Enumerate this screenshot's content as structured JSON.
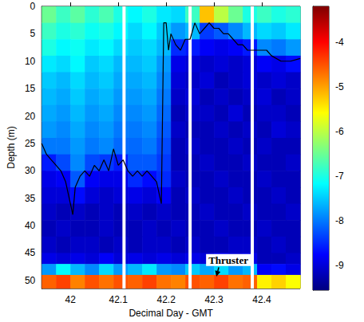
{
  "chart_data": {
    "type": "heatmap",
    "xlabel": "Decimal Day - GMT",
    "ylabel": "Depth (m)",
    "xlim": [
      41.94,
      42.48
    ],
    "xticks": [
      42,
      42.1,
      42.2,
      42.3,
      42.4
    ],
    "ylim": [
      51.5,
      0
    ],
    "yticks": [
      0,
      5,
      10,
      15,
      20,
      25,
      30,
      35,
      40,
      45,
      50
    ],
    "grid": false,
    "x_edges": [
      41.94,
      41.97,
      42.0,
      42.03,
      42.06,
      42.09,
      42.12,
      42.15,
      42.18,
      42.21,
      42.24,
      42.27,
      42.3,
      42.33,
      42.36,
      42.39,
      42.42,
      42.45,
      42.48
    ],
    "depth_edges": [
      0,
      3,
      6,
      9,
      12,
      15,
      18,
      21,
      24,
      27,
      30,
      33,
      36,
      39,
      42,
      45,
      47,
      49,
      51.5
    ],
    "cells": [
      [
        -6.5,
        -6.8,
        -6.6,
        -6.9,
        -6.7,
        -7.0,
        -7.2,
        -7.0,
        -7.3,
        -7.4,
        -6.8,
        -5.2,
        -6.0,
        -6.5,
        -7.0,
        -6.8,
        -7.0,
        -6.9
      ],
      [
        -6.8,
        -7.0,
        -6.9,
        -7.1,
        -7.0,
        -7.2,
        -7.4,
        -7.2,
        -7.5,
        -7.8,
        -7.6,
        -8.4,
        -8.2,
        -7.9,
        -7.6,
        -7.4,
        -7.5,
        -7.3
      ],
      [
        -7.0,
        -7.2,
        -7.1,
        -7.3,
        -7.2,
        -7.4,
        -7.5,
        -7.4,
        -7.6,
        -8.5,
        -8.6,
        -8.8,
        -8.9,
        -8.8,
        -8.6,
        -7.9,
        -8.0,
        -7.8
      ],
      [
        -7.3,
        -7.4,
        -7.2,
        -7.5,
        -7.4,
        -7.6,
        -7.6,
        -7.5,
        -7.8,
        -8.9,
        -9.0,
        -9.1,
        -9.0,
        -9.1,
        -9.0,
        -8.8,
        -8.9,
        -8.7
      ],
      [
        -7.5,
        -7.6,
        -7.4,
        -7.6,
        -7.5,
        -7.7,
        -7.7,
        -7.6,
        -7.9,
        -9.0,
        -9.1,
        -9.0,
        -9.2,
        -9.1,
        -9.0,
        -9.1,
        -9.0,
        -9.1
      ],
      [
        -7.6,
        -7.7,
        -7.5,
        -7.7,
        -7.6,
        -7.8,
        -7.8,
        -7.7,
        -8.0,
        -9.1,
        -9.0,
        -9.2,
        -9.1,
        -9.2,
        -9.1,
        -9.0,
        -9.2,
        -9.1
      ],
      [
        -7.7,
        -7.8,
        -7.6,
        -7.8,
        -7.7,
        -7.9,
        -7.9,
        -7.8,
        -8.1,
        -9.2,
        -9.1,
        -9.1,
        -9.2,
        -9.0,
        -9.2,
        -9.1,
        -9.1,
        -9.2
      ],
      [
        -7.8,
        -7.9,
        -7.7,
        -7.9,
        -7.8,
        -8.0,
        -8.0,
        -7.9,
        -8.2,
        -9.1,
        -9.2,
        -9.2,
        -9.1,
        -9.2,
        -9.1,
        -9.2,
        -9.0,
        -9.1
      ],
      [
        -8.0,
        -8.0,
        -7.8,
        -8.0,
        -7.9,
        -8.1,
        -8.1,
        -8.0,
        -8.3,
        -9.2,
        -9.1,
        -9.2,
        -9.2,
        -9.1,
        -9.2,
        -9.1,
        -9.2,
        -9.2
      ],
      [
        -8.6,
        -8.3,
        -7.9,
        -8.3,
        -8.4,
        -8.6,
        -8.2,
        -8.2,
        -8.4,
        -9.2,
        -9.2,
        -9.1,
        -9.2,
        -9.2,
        -9.1,
        -9.2,
        -9.2,
        -9.1
      ],
      [
        -8.9,
        -8.8,
        -8.2,
        -8.8,
        -8.9,
        -8.9,
        -8.5,
        -8.7,
        -8.5,
        -9.1,
        -9.2,
        -9.2,
        -9.1,
        -9.2,
        -9.2,
        -9.1,
        -9.2,
        -9.2
      ],
      [
        -9.0,
        -9.0,
        -8.7,
        -9.0,
        -9.1,
        -9.0,
        -8.9,
        -9.0,
        -8.8,
        -9.2,
        -9.1,
        -9.2,
        -9.2,
        -9.1,
        -9.2,
        -9.2,
        -9.1,
        -9.2
      ],
      [
        -9.1,
        -9.2,
        -9.1,
        -9.2,
        -9.1,
        -9.2,
        -9.1,
        -9.2,
        -9.1,
        -9.2,
        -9.2,
        -9.1,
        -9.2,
        -9.2,
        -9.1,
        -9.2,
        -9.2,
        -9.1
      ],
      [
        -9.2,
        -9.1,
        -9.2,
        -9.2,
        -9.1,
        -9.2,
        -9.2,
        -9.1,
        -9.2,
        -9.1,
        -9.2,
        -9.2,
        -9.1,
        -9.2,
        -9.2,
        -9.1,
        -9.2,
        -9.2
      ],
      [
        -9.1,
        -9.2,
        -9.1,
        -9.1,
        -9.2,
        -9.1,
        -9.2,
        -9.1,
        -9.1,
        -9.2,
        -9.1,
        -9.2,
        -9.2,
        -9.1,
        -9.1,
        -9.2,
        -9.1,
        -9.2
      ],
      [
        -8.9,
        -9.0,
        -8.9,
        -9.0,
        -8.8,
        -9.0,
        -8.9,
        -9.0,
        -8.9,
        -9.0,
        -8.9,
        -9.0,
        -8.8,
        -9.0,
        -8.9,
        -9.2,
        -9.2,
        -9.1
      ],
      [
        -7.8,
        -7.2,
        -7.6,
        -7.9,
        -7.4,
        -7.8,
        -7.6,
        -7.3,
        -7.8,
        -7.9,
        -7.5,
        -7.7,
        -7.4,
        -7.8,
        -7.6,
        -8.8,
        -8.7,
        -8.9
      ],
      [
        -4.6,
        -4.4,
        -4.8,
        -4.5,
        -4.7,
        -4.5,
        -4.6,
        -4.4,
        -4.7,
        -4.8,
        -4.5,
        -4.6,
        -4.4,
        -4.7,
        -4.6,
        -5.5,
        -5.3,
        -5.6
      ]
    ],
    "colorbar": {
      "range": [
        -9.55,
        -3.2
      ],
      "ticks": [
        -9,
        -8,
        -7,
        -6,
        -5,
        -4
      ]
    },
    "gaps": [
      42.112,
      42.25,
      42.38
    ],
    "line": {
      "color": "#000000",
      "x": [
        41.94,
        41.95,
        41.96,
        41.97,
        41.98,
        41.99,
        42.0,
        42.005,
        42.01,
        42.02,
        42.03,
        42.04,
        42.05,
        42.06,
        42.07,
        42.08,
        42.09,
        42.1,
        42.11,
        42.12,
        42.13,
        42.14,
        42.15,
        42.16,
        42.17,
        42.18,
        42.19,
        42.195,
        42.2,
        42.205,
        42.21,
        42.22,
        42.23,
        42.24,
        42.25,
        42.26,
        42.27,
        42.28,
        42.29,
        42.3,
        42.31,
        42.32,
        42.33,
        42.34,
        42.35,
        42.36,
        42.37,
        42.38,
        42.4,
        42.41,
        42.42,
        42.44,
        42.46,
        42.48
      ],
      "y": [
        25,
        27,
        28,
        29,
        30,
        32,
        36,
        38,
        33,
        31,
        30,
        31,
        29,
        30,
        28,
        30,
        26,
        29,
        28,
        30,
        31,
        30,
        31,
        30,
        31,
        32,
        36,
        3,
        3,
        8,
        5,
        7,
        8,
        6,
        6,
        3,
        5,
        4,
        3,
        4,
        4,
        5,
        5,
        6,
        7,
        7,
        8,
        8,
        8,
        8,
        9,
        10,
        10,
        9.5
      ]
    },
    "annotations": [
      {
        "text": "Thruster",
        "x": 42.33,
        "y": 46.3,
        "arrow_to": [
          42.305,
          49.3
        ]
      }
    ]
  }
}
